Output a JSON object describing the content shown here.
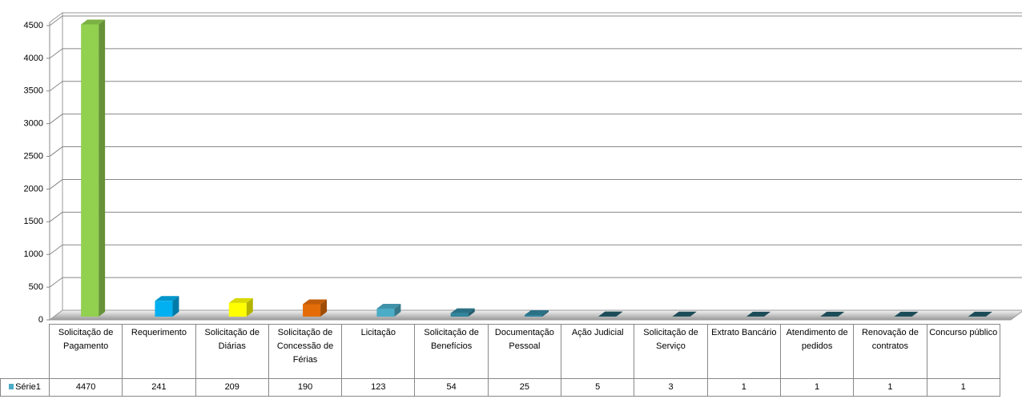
{
  "chart_data": {
    "type": "bar3d",
    "categories": [
      "Solicitação de Pagamento",
      "Requerimento",
      "Solicitação de Diárias",
      "Solicitação de Concessão de Férias",
      "Licitação",
      "Solicitação de Benefícios",
      "Documentação Pessoal",
      "Ação Judicial",
      "Solicitação de Serviço",
      "Extrato Bancário",
      "Atendimento de pedidos",
      "Renovação de contratos",
      "Concurso público"
    ],
    "series": [
      {
        "name": "Série1",
        "color": "#4bacc6",
        "values": [
          4470,
          241,
          209,
          190,
          123,
          54,
          25,
          5,
          3,
          1,
          1,
          1,
          1
        ]
      }
    ],
    "colors": [
      "#92d050",
      "#00b0f0",
      "#ffff00",
      "#e36c09",
      "#4bacc6",
      "#31859c",
      "#31859c",
      "#215967",
      "#215967",
      "#215967",
      "#215967",
      "#215967",
      "#215967"
    ],
    "ylim": [
      0,
      4500
    ],
    "yticks": [
      0,
      500,
      1000,
      1500,
      2000,
      2500,
      3000,
      3500,
      4000,
      4500
    ],
    "grid": true
  }
}
